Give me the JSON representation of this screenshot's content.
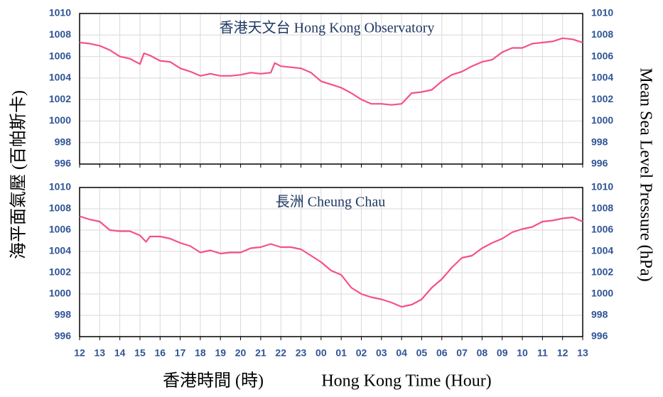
{
  "chart_data": [
    {
      "type": "line",
      "title": "香港天文台  Hong Kong Observatory",
      "color": "#f5508a",
      "x": [
        0,
        0.5,
        1,
        1.5,
        2,
        2.5,
        3,
        3.2,
        3.5,
        4,
        4.5,
        5,
        5.5,
        6,
        6.5,
        7,
        7.5,
        8,
        8.5,
        9,
        9.5,
        9.7,
        10,
        10.5,
        11,
        11.5,
        12,
        12.5,
        13,
        13.5,
        14,
        14.5,
        15,
        15.5,
        16,
        16.5,
        17,
        17.5,
        18,
        18.5,
        19,
        19.5,
        20,
        20.5,
        21,
        21.5,
        22,
        22.5,
        23,
        23.5,
        24,
        24.5,
        25
      ],
      "values": [
        1007.3,
        1007.2,
        1007.0,
        1006.6,
        1006.0,
        1005.8,
        1005.3,
        1006.3,
        1006.1,
        1005.6,
        1005.5,
        1004.9,
        1004.6,
        1004.2,
        1004.4,
        1004.2,
        1004.2,
        1004.3,
        1004.5,
        1004.4,
        1004.5,
        1005.4,
        1005.1,
        1005.0,
        1004.9,
        1004.5,
        1003.7,
        1003.4,
        1003.1,
        1002.6,
        1002.0,
        1001.6,
        1001.6,
        1001.5,
        1001.6,
        1002.6,
        1002.7,
        1002.9,
        1003.7,
        1004.3,
        1004.6,
        1005.1,
        1005.5,
        1005.7,
        1006.4,
        1006.8,
        1006.8,
        1007.2,
        1007.3,
        1007.4,
        1007.7,
        1007.6,
        1007.3
      ],
      "xlim": [
        0,
        25
      ],
      "ylim": [
        996,
        1010
      ],
      "yticks": [
        996,
        998,
        1000,
        1002,
        1004,
        1006,
        1008,
        1010
      ],
      "grid": true
    },
    {
      "type": "line",
      "title": "長洲  Cheung Chau",
      "color": "#f5508a",
      "x": [
        0,
        0.5,
        1,
        1.5,
        2,
        2.5,
        3,
        3.3,
        3.5,
        4,
        4.5,
        5,
        5.5,
        6,
        6.5,
        7,
        7.5,
        8,
        8.5,
        9,
        9.5,
        10,
        10.5,
        11,
        11.5,
        12,
        12.5,
        13,
        13.5,
        14,
        14.5,
        15,
        15.5,
        16,
        16.5,
        17,
        17.5,
        18,
        18.5,
        19,
        19.5,
        20,
        20.5,
        21,
        21.5,
        22,
        22.5,
        23,
        23.5,
        24,
        24.5,
        25
      ],
      "values": [
        1007.3,
        1007.0,
        1006.8,
        1006.0,
        1005.9,
        1005.9,
        1005.5,
        1004.9,
        1005.4,
        1005.4,
        1005.2,
        1004.8,
        1004.5,
        1003.9,
        1004.1,
        1003.8,
        1003.9,
        1003.9,
        1004.3,
        1004.4,
        1004.7,
        1004.4,
        1004.4,
        1004.2,
        1003.6,
        1003.0,
        1002.2,
        1001.8,
        1000.6,
        1000.0,
        999.7,
        999.5,
        999.2,
        998.8,
        999.0,
        999.5,
        1000.6,
        1001.4,
        1002.5,
        1003.4,
        1003.6,
        1004.3,
        1004.8,
        1005.2,
        1005.8,
        1006.1,
        1006.3,
        1006.8,
        1006.9,
        1007.1,
        1007.2,
        1006.8
      ],
      "xlim": [
        0,
        25
      ],
      "ylim": [
        996,
        1010
      ],
      "yticks": [
        996,
        998,
        1000,
        1002,
        1004,
        1006,
        1008,
        1010
      ],
      "grid": true,
      "xticks": [
        {
          "value": 0,
          "label": "12"
        },
        {
          "value": 1,
          "label": "13"
        },
        {
          "value": 2,
          "label": "14"
        },
        {
          "value": 3,
          "label": "15"
        },
        {
          "value": 4,
          "label": "16"
        },
        {
          "value": 5,
          "label": "17"
        },
        {
          "value": 6,
          "label": "18"
        },
        {
          "value": 7,
          "label": "19"
        },
        {
          "value": 8,
          "label": "20"
        },
        {
          "value": 9,
          "label": "21"
        },
        {
          "value": 10,
          "label": "22"
        },
        {
          "value": 11,
          "label": "23"
        },
        {
          "value": 12,
          "label": "00"
        },
        {
          "value": 13,
          "label": "01"
        },
        {
          "value": 14,
          "label": "02"
        },
        {
          "value": 15,
          "label": "03"
        },
        {
          "value": 16,
          "label": "04"
        },
        {
          "value": 17,
          "label": "05"
        },
        {
          "value": 18,
          "label": "06"
        },
        {
          "value": 19,
          "label": "07"
        },
        {
          "value": 20,
          "label": "08"
        },
        {
          "value": 21,
          "label": "09"
        },
        {
          "value": 22,
          "label": "10"
        },
        {
          "value": 23,
          "label": "11"
        },
        {
          "value": 24,
          "label": "12"
        },
        {
          "value": 25,
          "label": "13"
        }
      ]
    }
  ],
  "axis_titles": {
    "y_left": "海平面氣壓 (百帕斯卡)",
    "y_right": "Mean Sea Level Pressure (hPa)",
    "x_chinese": "香港時間 (時)",
    "x_english": "Hong Kong Time (Hour)"
  }
}
